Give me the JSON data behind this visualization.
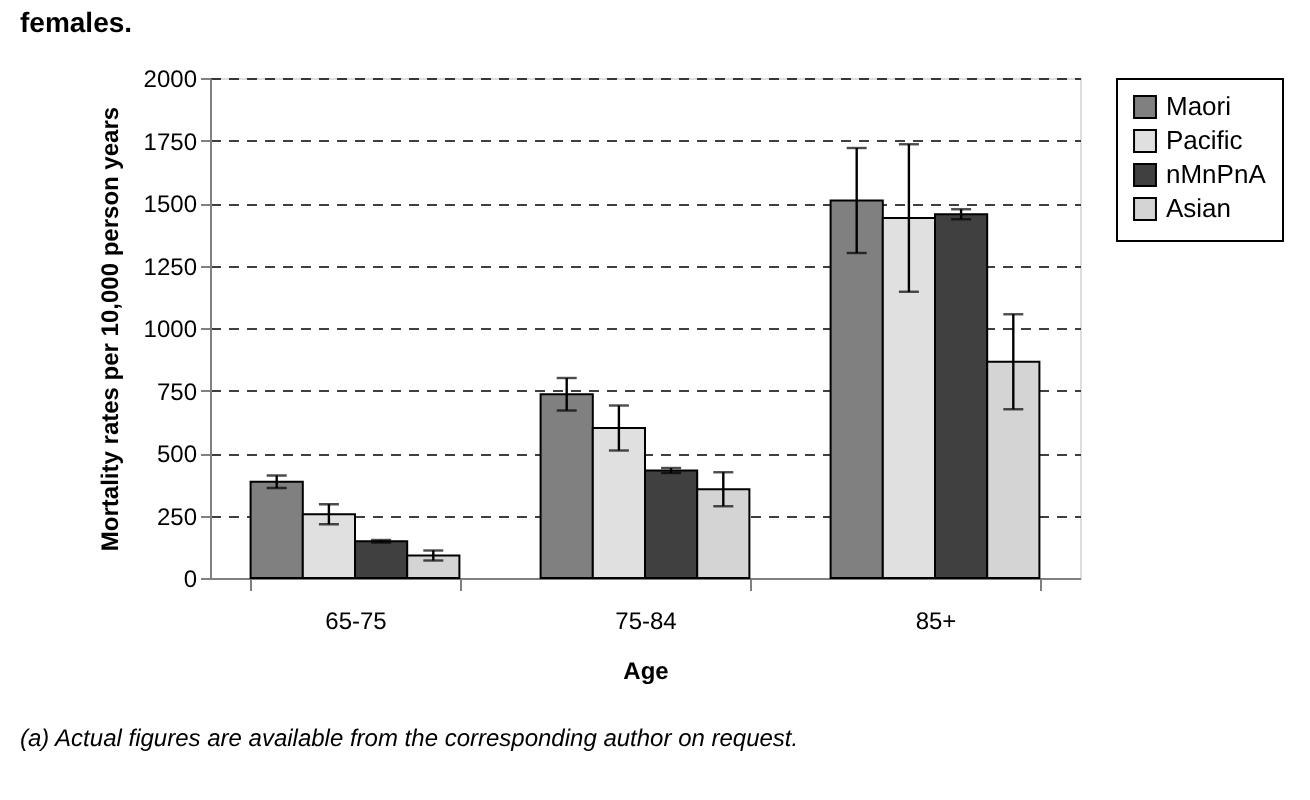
{
  "chart_data": {
    "type": "bar",
    "title": "females.",
    "categories": [
      "65-75",
      "75-84",
      "85+"
    ],
    "xlabel": "Age",
    "ylabel": "Mortality rates per 10,000 person years",
    "series": [
      {
        "name": "Maori",
        "color": "#808080",
        "values": [
          385,
          735,
          1510
        ],
        "errors": [
          25,
          65,
          210
        ]
      },
      {
        "name": "Pacific",
        "color": "#e0e0e0",
        "values": [
          255,
          600,
          1440
        ],
        "errors": [
          40,
          90,
          295
        ]
      },
      {
        "name": "nMnPnA",
        "color": "#404040",
        "values": [
          147,
          430,
          1455
        ],
        "errors": [
          5,
          10,
          20
        ]
      },
      {
        "name": "Asian",
        "color": "#d4d4d4",
        "values": [
          90,
          355,
          865
        ],
        "errors": [
          20,
          68,
          190
        ]
      }
    ],
    "ylim": [
      0,
      2000
    ],
    "yticks": [
      0,
      250,
      500,
      750,
      1000,
      1250,
      1500,
      1750,
      2000
    ],
    "grid": "y",
    "legend": "right",
    "annotations": [
      "(a) Actual figures are available from the corresponding author on request."
    ]
  }
}
